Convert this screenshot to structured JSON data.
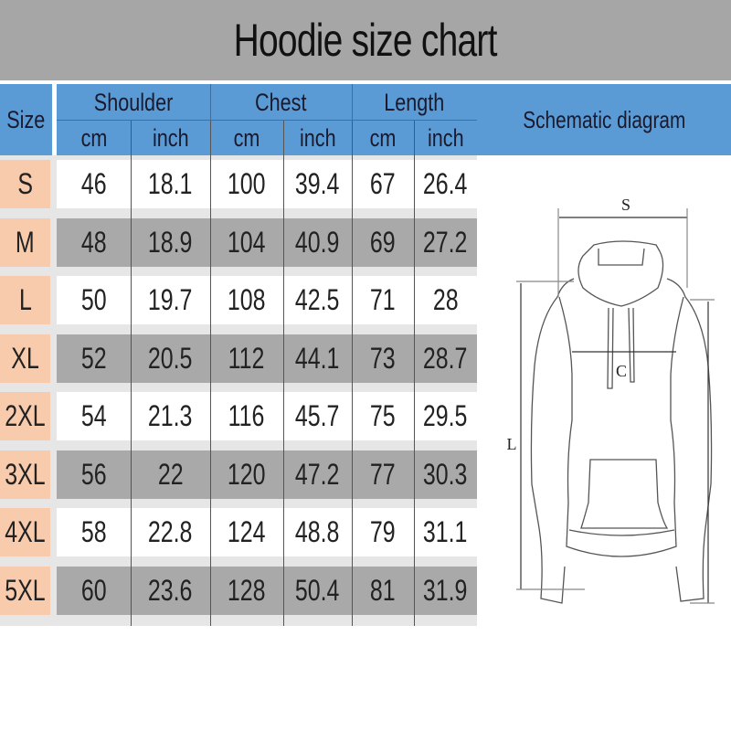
{
  "title": "Hoodie size chart",
  "table": {
    "size_header": "Size",
    "groups": [
      "Shoulder",
      "Chest",
      "Length"
    ],
    "units": [
      "cm",
      "inch",
      "cm",
      "inch",
      "cm",
      "inch"
    ],
    "rows": [
      {
        "size": "S",
        "values": [
          "46",
          "18.1",
          "100",
          "39.4",
          "67",
          "26.4"
        ]
      },
      {
        "size": "M",
        "values": [
          "48",
          "18.9",
          "104",
          "40.9",
          "69",
          "27.2"
        ]
      },
      {
        "size": "L",
        "values": [
          "50",
          "19.7",
          "108",
          "42.5",
          "71",
          "28"
        ]
      },
      {
        "size": "XL",
        "values": [
          "52",
          "20.5",
          "112",
          "44.1",
          "73",
          "28.7"
        ]
      },
      {
        "size": "2XL",
        "values": [
          "54",
          "21.3",
          "116",
          "45.7",
          "75",
          "29.5"
        ]
      },
      {
        "size": "3XL",
        "values": [
          "56",
          "22",
          "120",
          "47.2",
          "77",
          "30.3"
        ]
      },
      {
        "size": "4XL",
        "values": [
          "58",
          "22.8",
          "124",
          "48.8",
          "79",
          "31.1"
        ]
      },
      {
        "size": "5XL",
        "values": [
          "60",
          "23.6",
          "128",
          "50.4",
          "81",
          "31.9"
        ]
      }
    ]
  },
  "schematic": {
    "header": "Schematic diagram",
    "labels": {
      "shoulder": "S",
      "chest": "C",
      "length": "L"
    }
  },
  "colors": {
    "header_blue": "#5b9bd5",
    "size_orange": "#f8cbad",
    "row_gray": "#a9a9a9",
    "title_gray": "#a6a6a6"
  }
}
